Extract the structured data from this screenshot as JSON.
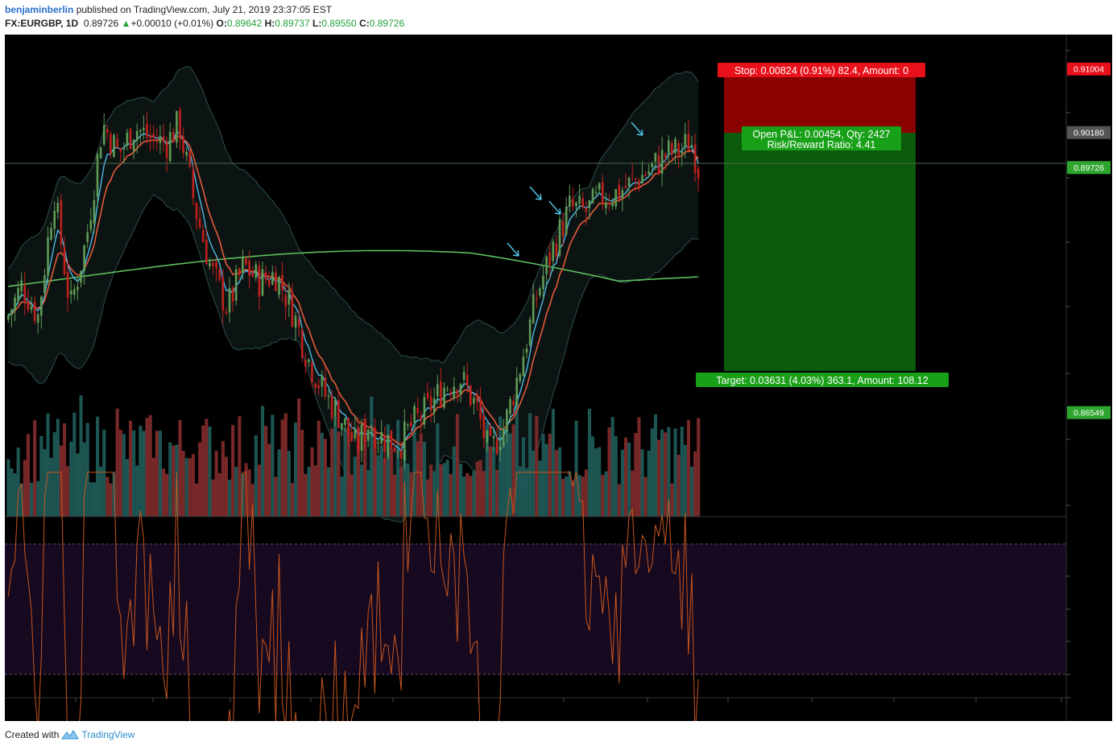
{
  "header": {
    "author": "benjaminberlin",
    "published_text": "published on TradingView.com, July 21, 2019 23:37:05 EST",
    "symbol": "FX:EURGBP, 1D",
    "last": "0.89726",
    "change": "+0.00010 (+0.01%)",
    "open_label": "O:",
    "open": "0.89642",
    "high_label": "H:",
    "high": "0.89737",
    "low_label": "L:",
    "low": "0.89550",
    "close_label": "C:",
    "close": "0.89726"
  },
  "colors": {
    "background": "#000000",
    "bull_candle": "#5f9b55",
    "bear_candle": "#c0211c",
    "bull_volume": "#1f5a57",
    "bear_volume": "#7e2a2a",
    "ema_fast": "#4fb8e6",
    "ema_slow": "#e45a3a",
    "sma_long": "#5cbf5c",
    "bollinger": "#2e4e4e",
    "stop_zone": "#8b0000",
    "target_zone": "#0c5a0c",
    "rsi_line": "#c8561e",
    "rsi_band": "#160920",
    "accent_blue": "#2a6fc9"
  },
  "position": {
    "stop_label": "Stop: 0.00824 (0.91%) 82.4, Amount: 0",
    "open_pnl_label": "Open P&L: 0.00454, Qty: 2427",
    "risk_reward_label": "Risk/Reward Ratio: 4.41",
    "target_label": "Target: 0.03631 (4.03%) 363.1, Amount: 108.12"
  },
  "price_axis": {
    "tags": [
      {
        "value": "0.91004",
        "color": "#e8101a",
        "price": 0.91004
      },
      {
        "value": "0.90180",
        "color": "#555555",
        "price": 0.9018
      },
      {
        "value": "0.89726",
        "color": "#2ea52e",
        "price": 0.89726
      },
      {
        "value": "0.86549",
        "color": "#2ea52e",
        "price": 0.86549
      }
    ]
  },
  "footer": {
    "created_with": "Created with",
    "brand": "TradingView"
  },
  "chart_data": {
    "type": "candlestick",
    "instrument": "FX:EURGBP",
    "timeframe": "1D",
    "y_range": [
      0.852,
      0.9145
    ],
    "overlays": [
      "fast EMA",
      "slow EMA",
      "long SMA",
      "Bollinger Bands"
    ],
    "close_path": [
      [
        0,
        0.8775
      ],
      [
        20,
        0.882
      ],
      [
        40,
        0.878
      ],
      [
        60,
        0.894
      ],
      [
        80,
        0.879
      ],
      [
        100,
        0.888
      ],
      [
        120,
        0.903
      ],
      [
        140,
        0.899
      ],
      [
        160,
        0.9025
      ],
      [
        180,
        0.901
      ],
      [
        200,
        0.9005
      ],
      [
        215,
        0.903
      ],
      [
        235,
        0.892
      ],
      [
        255,
        0.884
      ],
      [
        275,
        0.879
      ],
      [
        295,
        0.8845
      ],
      [
        315,
        0.8825
      ],
      [
        335,
        0.8835
      ],
      [
        355,
        0.879
      ],
      [
        375,
        0.8725
      ],
      [
        395,
        0.868
      ],
      [
        415,
        0.865
      ],
      [
        435,
        0.861
      ],
      [
        450,
        0.864
      ],
      [
        470,
        0.862
      ],
      [
        490,
        0.8615
      ],
      [
        505,
        0.864
      ],
      [
        525,
        0.866
      ],
      [
        545,
        0.869
      ],
      [
        565,
        0.87
      ],
      [
        585,
        0.866
      ],
      [
        600,
        0.86
      ],
      [
        620,
        0.864
      ],
      [
        640,
        0.872
      ],
      [
        660,
        0.881
      ],
      [
        680,
        0.887
      ],
      [
        700,
        0.892
      ],
      [
        720,
        0.8915
      ],
      [
        740,
        0.8935
      ],
      [
        760,
        0.894
      ],
      [
        780,
        0.8955
      ],
      [
        800,
        0.897
      ],
      [
        820,
        0.899
      ],
      [
        840,
        0.8995
      ],
      [
        850,
        0.901
      ],
      [
        860,
        0.8972
      ]
    ],
    "signal_arrows": 4,
    "rsi_levels": [
      70,
      30
    ]
  }
}
